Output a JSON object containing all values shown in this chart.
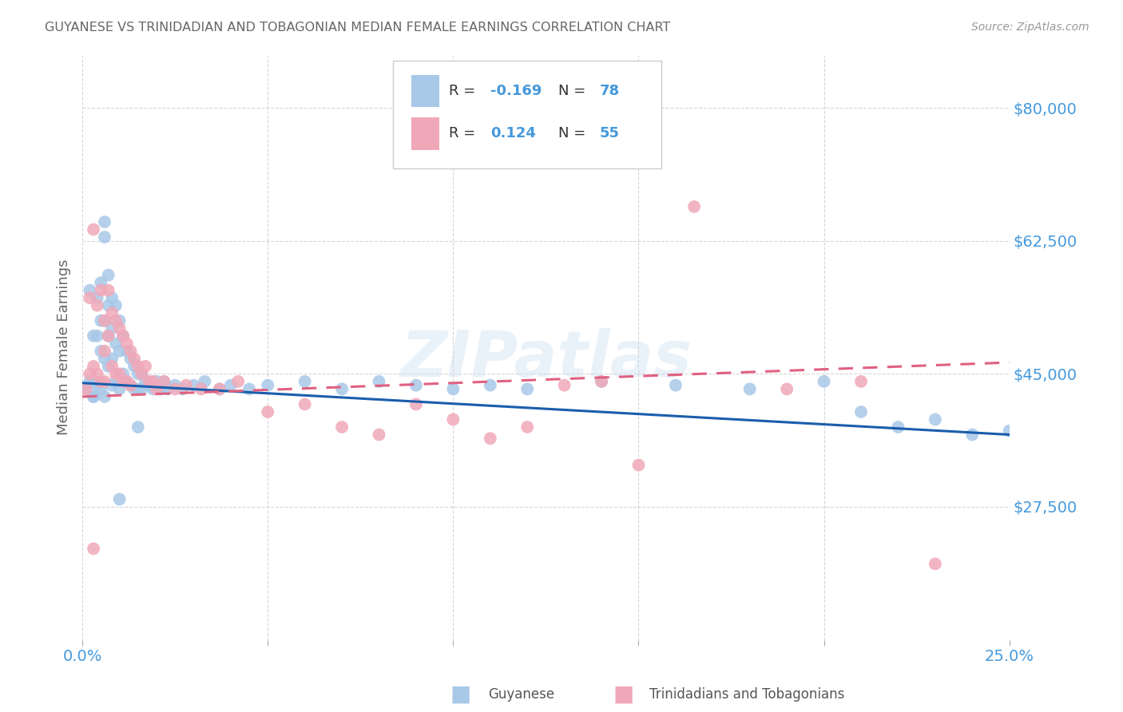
{
  "title": "GUYANESE VS TRINIDADIAN AND TOBAGONIAN MEDIAN FEMALE EARNINGS CORRELATION CHART",
  "source": "Source: ZipAtlas.com",
  "ylabel": "Median Female Earnings",
  "ytick_labels": [
    "$27,500",
    "$45,000",
    "$62,500",
    "$80,000"
  ],
  "ytick_values": [
    27500,
    45000,
    62500,
    80000
  ],
  "xlim": [
    0.0,
    0.25
  ],
  "ylim": [
    10000,
    87000
  ],
  "watermark": "ZIPatlas",
  "legend_R_blue": "-0.169",
  "legend_N_blue": "78",
  "legend_R_pink": "0.124",
  "legend_N_pink": "55",
  "blue_color": "#A8C8E8",
  "pink_color": "#F0A8B8",
  "blue_line_color": "#1A5DAD",
  "pink_line_color": "#E06080",
  "title_color": "#666666",
  "axis_label_color": "#4499DD",
  "background_color": "#FFFFFF",
  "grid_color": "#CCCCCC",
  "blue_scatter_x": [
    0.001,
    0.002,
    0.002,
    0.003,
    0.003,
    0.003,
    0.004,
    0.004,
    0.004,
    0.005,
    0.005,
    0.005,
    0.005,
    0.006,
    0.006,
    0.006,
    0.006,
    0.007,
    0.007,
    0.007,
    0.007,
    0.008,
    0.008,
    0.008,
    0.008,
    0.009,
    0.009,
    0.009,
    0.01,
    0.01,
    0.01,
    0.011,
    0.011,
    0.012,
    0.012,
    0.013,
    0.013,
    0.014,
    0.014,
    0.015,
    0.015,
    0.016,
    0.016,
    0.017,
    0.018,
    0.019,
    0.02,
    0.021,
    0.022,
    0.023,
    0.025,
    0.027,
    0.03,
    0.033,
    0.037,
    0.04,
    0.045,
    0.05,
    0.06,
    0.07,
    0.08,
    0.09,
    0.1,
    0.11,
    0.12,
    0.14,
    0.16,
    0.18,
    0.2,
    0.21,
    0.22,
    0.23,
    0.24,
    0.25,
    0.003,
    0.006,
    0.01,
    0.015
  ],
  "blue_scatter_y": [
    43000,
    56000,
    44000,
    50000,
    44000,
    42000,
    55000,
    50000,
    43500,
    57000,
    52000,
    48000,
    43000,
    65000,
    63000,
    52000,
    47000,
    58000,
    54000,
    50000,
    46000,
    55000,
    51000,
    47000,
    43500,
    54000,
    49000,
    44000,
    52000,
    48000,
    43000,
    50000,
    45000,
    48000,
    44000,
    47000,
    43500,
    46000,
    43000,
    45000,
    43000,
    45000,
    43000,
    44000,
    43500,
    43000,
    44000,
    43000,
    44000,
    43000,
    43500,
    43000,
    43500,
    44000,
    43000,
    43500,
    43000,
    43500,
    44000,
    43000,
    44000,
    43500,
    43000,
    43500,
    43000,
    44000,
    43500,
    43000,
    44000,
    40000,
    38000,
    39000,
    37000,
    37500,
    42000,
    42000,
    28500,
    38000
  ],
  "pink_scatter_x": [
    0.001,
    0.002,
    0.002,
    0.003,
    0.003,
    0.004,
    0.004,
    0.005,
    0.005,
    0.006,
    0.006,
    0.006,
    0.007,
    0.007,
    0.008,
    0.008,
    0.009,
    0.009,
    0.01,
    0.01,
    0.011,
    0.011,
    0.012,
    0.012,
    0.013,
    0.013,
    0.014,
    0.015,
    0.016,
    0.017,
    0.018,
    0.019,
    0.02,
    0.022,
    0.025,
    0.028,
    0.032,
    0.037,
    0.042,
    0.05,
    0.06,
    0.07,
    0.08,
    0.09,
    0.1,
    0.11,
    0.12,
    0.13,
    0.14,
    0.15,
    0.165,
    0.19,
    0.21,
    0.23,
    0.003
  ],
  "pink_scatter_y": [
    43000,
    55000,
    45000,
    64000,
    46000,
    54000,
    45000,
    56000,
    44000,
    52000,
    48000,
    44000,
    56000,
    50000,
    53000,
    46000,
    52000,
    45000,
    51000,
    45000,
    50000,
    44000,
    49000,
    44000,
    48000,
    43500,
    47000,
    46000,
    45000,
    46000,
    44000,
    44000,
    43000,
    44000,
    43000,
    43500,
    43000,
    43000,
    44000,
    40000,
    41000,
    38000,
    37000,
    41000,
    39000,
    36500,
    38000,
    43500,
    44000,
    33000,
    67000,
    43000,
    44000,
    20000,
    22000
  ],
  "blue_trend_x0": 0.0,
  "blue_trend_y0": 43800,
  "blue_trend_x1": 0.25,
  "blue_trend_y1": 37000,
  "pink_trend_x0": 0.0,
  "pink_trend_y0": 42000,
  "pink_trend_x1": 0.25,
  "pink_trend_y1": 46500
}
